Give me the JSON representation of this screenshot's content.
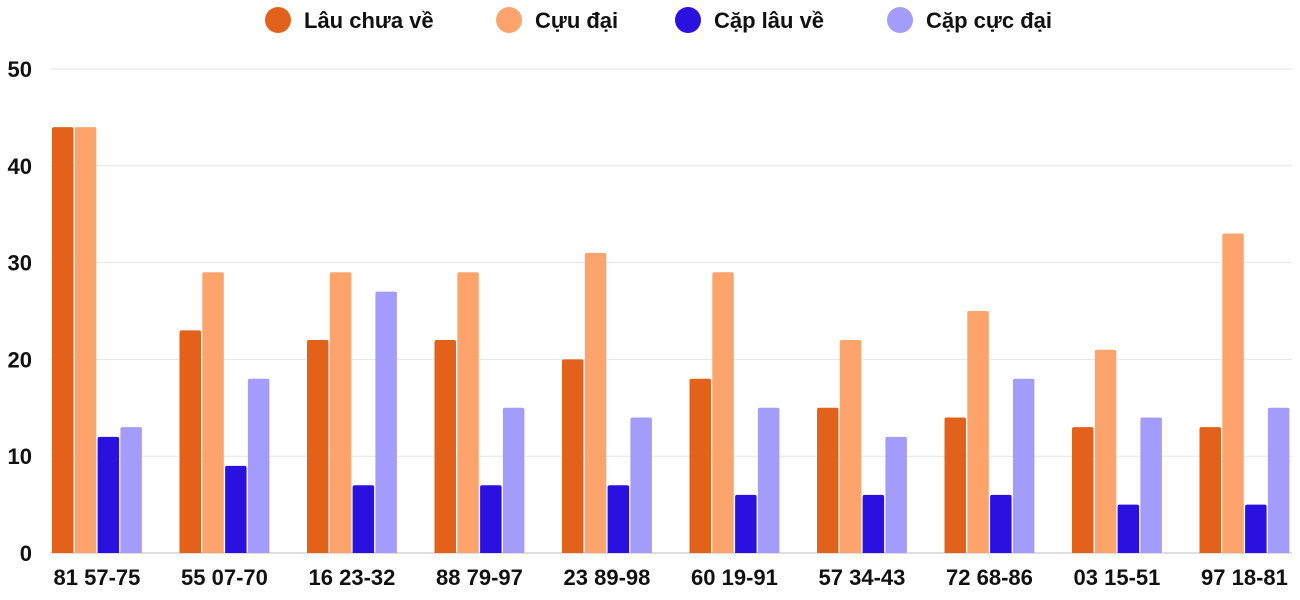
{
  "chart_data": {
    "type": "bar",
    "categories": [
      "81 57-75",
      "55 07-70",
      "16 23-32",
      "88 79-97",
      "23 89-98",
      "60 19-91",
      "57 34-43",
      "72 68-86",
      "03 15-51",
      "97 18-81"
    ],
    "series": [
      {
        "name": "Lâu chưa về",
        "color": "#e2621b",
        "values": [
          44,
          23,
          22,
          22,
          20,
          18,
          15,
          14,
          13,
          13
        ]
      },
      {
        "name": "Cựu đại",
        "color": "#fda46d",
        "values": [
          44,
          29,
          29,
          29,
          31,
          29,
          22,
          25,
          21,
          33
        ]
      },
      {
        "name": "Cặp lâu về",
        "color": "#2a11e0",
        "values": [
          12,
          9,
          7,
          7,
          7,
          6,
          6,
          6,
          5,
          5
        ]
      },
      {
        "name": "Cặp cực đại",
        "color": "#a39cfb",
        "values": [
          13,
          18,
          27,
          15,
          14,
          15,
          12,
          18,
          14,
          15
        ]
      }
    ],
    "yticks": [
      "0",
      "10",
      "20",
      "30",
      "40",
      "50"
    ],
    "ylim": [
      0,
      50
    ],
    "grid": true,
    "legend_position": "top-center",
    "title": "",
    "xlabel": "",
    "ylabel": ""
  }
}
